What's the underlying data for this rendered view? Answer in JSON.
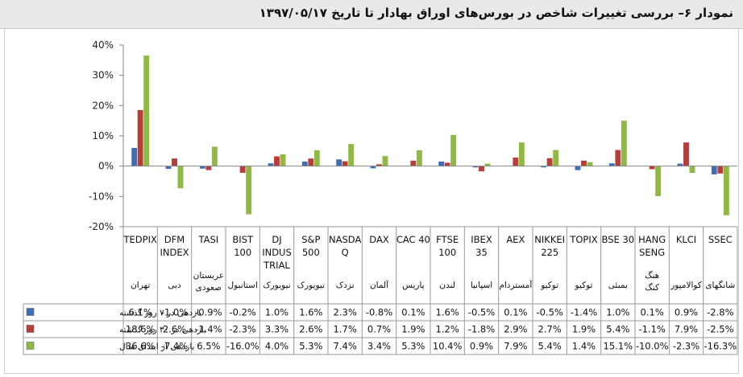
{
  "title": "نمودار ۶– بررسی تغییرات شاخص در بورس‌های اوراق بهادار تا تاریخ  ۱۳۹۷/۰۵/۱۷",
  "colors": {
    "series_1": "#3d6fb5",
    "series_2": "#b73c3a",
    "series_3": "#8fb845"
  },
  "chart_data": {
    "type": "bar",
    "title": "نمودار ۶– بررسی تغییرات شاخص در بورس‌های اوراق بهادار تا تاریخ  ۱۳۹۷/۰۵/۱۷",
    "categories": [
      {
        "code": [
          "TEDPIX"
        ],
        "city": [
          "تهران"
        ]
      },
      {
        "code": [
          "DFM",
          "INDEX"
        ],
        "city": [
          "دبی"
        ]
      },
      {
        "code": [
          "TASI"
        ],
        "city": [
          "عربستان",
          "صعودی"
        ]
      },
      {
        "code": [
          "BIST",
          "100"
        ],
        "city": [
          "استانبول"
        ]
      },
      {
        "code": [
          "DJ",
          "INDUS",
          "TRIAL"
        ],
        "city": [
          "نیویورک"
        ]
      },
      {
        "code": [
          "S&P",
          "500"
        ],
        "city": [
          "نیویورک"
        ]
      },
      {
        "code": [
          "NASDA",
          "Q"
        ],
        "city": [
          "نزدک"
        ]
      },
      {
        "code": [
          "DAX"
        ],
        "city": [
          "آلمان"
        ]
      },
      {
        "code": [
          "CAC 40"
        ],
        "city": [
          "پاریس"
        ]
      },
      {
        "code": [
          "FTSE",
          "100"
        ],
        "city": [
          "لندن"
        ]
      },
      {
        "code": [
          "IBEX",
          "35"
        ],
        "city": [
          "اسپانیا"
        ]
      },
      {
        "code": [
          "AEX"
        ],
        "city": [
          "آمستردام"
        ]
      },
      {
        "code": [
          "NIKKEI",
          "225"
        ],
        "city": [
          "توکیو"
        ]
      },
      {
        "code": [
          "TOPIX"
        ],
        "city": [
          "توکیو"
        ]
      },
      {
        "code": [
          "BSE 30"
        ],
        "city": [
          "بمبئی"
        ]
      },
      {
        "code": [
          "HANG",
          "SENG"
        ],
        "city": [
          "هنگ",
          "کنگ"
        ]
      },
      {
        "code": [
          "KLCI"
        ],
        "city": [
          "کوالامپور"
        ]
      },
      {
        "code": [
          "SSEC"
        ],
        "city": [
          "شانگهای"
        ]
      }
    ],
    "series": [
      {
        "name": "بازدهی در ۷ روز گذشته",
        "color": "#3d6fb5",
        "values": [
          6.1,
          -1.0,
          -0.9,
          -0.2,
          1.0,
          1.6,
          2.3,
          -0.8,
          0.1,
          1.6,
          -0.5,
          0.1,
          -0.5,
          -1.4,
          1.0,
          0.1,
          0.9,
          -2.8
        ],
        "labels": [
          "6.1%",
          "-1.0%",
          "-0.9%",
          "-0.2%",
          "1.0%",
          "1.6%",
          "2.3%",
          "-0.8%",
          "0.1%",
          "1.6%",
          "-0.5%",
          "0.1%",
          "-0.5%",
          "-1.4%",
          "1.0%",
          "0.1%",
          "0.9%",
          "-2.8%"
        ]
      },
      {
        "name": "بازدهی در ۳۰ روز گذشته",
        "color": "#b73c3a",
        "values": [
          18.6,
          2.6,
          -1.4,
          -2.3,
          3.3,
          2.6,
          1.7,
          0.7,
          1.9,
          1.2,
          -1.8,
          2.9,
          2.7,
          1.9,
          5.4,
          -1.1,
          7.9,
          -2.5
        ],
        "labels": [
          "18.6%",
          "2.6%",
          "-1.4%",
          "-2.3%",
          "3.3%",
          "2.6%",
          "1.7%",
          "0.7%",
          "1.9%",
          "1.2%",
          "-1.8%",
          "2.9%",
          "2.7%",
          "1.9%",
          "5.4%",
          "-1.1%",
          "7.9%",
          "-2.5%"
        ]
      },
      {
        "name": "بازدهی از ابتدای سال",
        "color": "#8fb845",
        "values": [
          36.6,
          -7.4,
          6.5,
          -16.0,
          4.0,
          5.3,
          7.4,
          3.4,
          5.3,
          10.4,
          0.9,
          7.9,
          5.4,
          1.4,
          15.1,
          -10.0,
          -2.3,
          -16.3
        ],
        "labels": [
          "36.6%",
          "-7.4%",
          "6.5%",
          "-16.0%",
          "4.0%",
          "5.3%",
          "7.4%",
          "3.4%",
          "5.3%",
          "10.4%",
          "0.9%",
          "7.9%",
          "5.4%",
          "1.4%",
          "15.1%",
          "-10.0%",
          "-2.3%",
          "-16.3%"
        ]
      }
    ],
    "ylim": [
      -20,
      40
    ],
    "yticks": [
      -20,
      -10,
      0,
      10,
      20,
      30,
      40
    ],
    "ytick_labels": [
      "-20%",
      "-10%",
      "0%",
      "10%",
      "20%",
      "30%",
      "40%"
    ],
    "grid": false,
    "legend": "table-left"
  }
}
